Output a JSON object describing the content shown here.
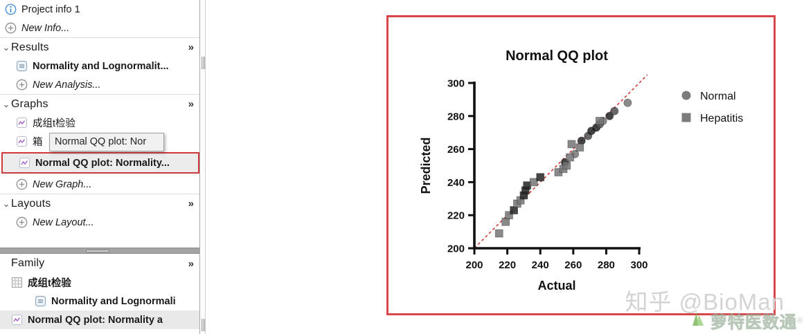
{
  "sidebar": {
    "glyphs": {
      "chevron": "⌄",
      "more": "»"
    },
    "info_item": {
      "label": "Project info 1"
    },
    "new_info": {
      "label": "New Info..."
    },
    "results_header": {
      "label": "Results"
    },
    "normality_item": {
      "label": "Normality and Lognormalit..."
    },
    "new_analysis": {
      "label": "New Analysis..."
    },
    "graphs_header": {
      "label": "Graphs"
    },
    "graph_ttest": {
      "label": "成组t检验"
    },
    "graph_box": {
      "label": "箱"
    },
    "graph_qq": {
      "label": "Normal QQ plot: Normality..."
    },
    "new_graph": {
      "label": "New Graph..."
    },
    "layouts_header": {
      "label": "Layouts"
    },
    "new_layout": {
      "label": "New Layout..."
    },
    "family": {
      "header": {
        "label": "Family"
      },
      "ttest": {
        "label": "成组t检验"
      },
      "normality": {
        "label": "Normality and Lognormali"
      },
      "qq": {
        "label": "Normal QQ plot: Normality a"
      }
    }
  },
  "tooltip": {
    "text": "Normal QQ plot: Nor"
  },
  "chart_data": {
    "type": "scatter",
    "title": "Normal QQ plot",
    "xlabel": "Actual",
    "ylabel": "Predicted",
    "xlim": [
      200,
      300
    ],
    "ylim": [
      200,
      300
    ],
    "xticks": [
      200,
      220,
      240,
      260,
      280,
      300
    ],
    "yticks": [
      200,
      220,
      240,
      260,
      280,
      300
    ],
    "grid": false,
    "legend_position": "right",
    "identity_line": {
      "from": [
        200,
        200
      ],
      "to": [
        305,
        305
      ],
      "style": "dashed",
      "color": "#d43a3a"
    },
    "series": [
      {
        "name": "Normal",
        "marker": "circle",
        "color": "#7c7c7c",
        "points": [
          {
            "x": 255,
            "y": 252,
            "s": "dark"
          },
          {
            "x": 261,
            "y": 257,
            "s": "gray"
          },
          {
            "x": 265,
            "y": 265,
            "s": "dark"
          },
          {
            "x": 269,
            "y": 268,
            "s": "mid"
          },
          {
            "x": 271,
            "y": 271,
            "s": "dark"
          },
          {
            "x": 274,
            "y": 273,
            "s": "dark"
          },
          {
            "x": 276,
            "y": 275,
            "s": "mid"
          },
          {
            "x": 278,
            "y": 277,
            "s": "gray"
          },
          {
            "x": 282,
            "y": 280,
            "s": "dark"
          },
          {
            "x": 285,
            "y": 283,
            "s": "mid"
          },
          {
            "x": 293,
            "y": 288,
            "s": "gray"
          }
        ]
      },
      {
        "name": "Hepatitis",
        "marker": "square",
        "color": "#7c7c7c",
        "points": [
          {
            "x": 215,
            "y": 209,
            "s": "gray"
          },
          {
            "x": 219,
            "y": 216,
            "s": "gray"
          },
          {
            "x": 221,
            "y": 220,
            "s": "gray"
          },
          {
            "x": 224,
            "y": 223,
            "s": "dark"
          },
          {
            "x": 226,
            "y": 227,
            "s": "gray"
          },
          {
            "x": 228,
            "y": 229,
            "s": "gray"
          },
          {
            "x": 230,
            "y": 232,
            "s": "dark"
          },
          {
            "x": 231,
            "y": 235,
            "s": "dark"
          },
          {
            "x": 232,
            "y": 238,
            "s": "dark"
          },
          {
            "x": 236,
            "y": 240,
            "s": "gray"
          },
          {
            "x": 240,
            "y": 243,
            "s": "dark"
          },
          {
            "x": 251,
            "y": 246,
            "s": "gray"
          },
          {
            "x": 254,
            "y": 248,
            "s": "gray"
          },
          {
            "x": 256,
            "y": 250,
            "s": "gray"
          },
          {
            "x": 258,
            "y": 255,
            "s": "gray"
          },
          {
            "x": 259,
            "y": 263,
            "s": "gray"
          },
          {
            "x": 264,
            "y": 261,
            "s": "gray"
          },
          {
            "x": 276,
            "y": 277,
            "s": "gray"
          }
        ]
      }
    ]
  },
  "watermark": {
    "handle": "知乎 @BioMan",
    "brand": "萝特医数通",
    "reg": "®"
  },
  "colors": {
    "accent_red": "#d8464a",
    "selection_red": "#cd383d",
    "dashed_line": "#d43a3a",
    "marker_dark": "#242424",
    "marker_mid": "#4f4f4f",
    "marker_gray": "#767676",
    "icon_purple": "#a86bc9",
    "icon_blue": "#4a90d9"
  }
}
